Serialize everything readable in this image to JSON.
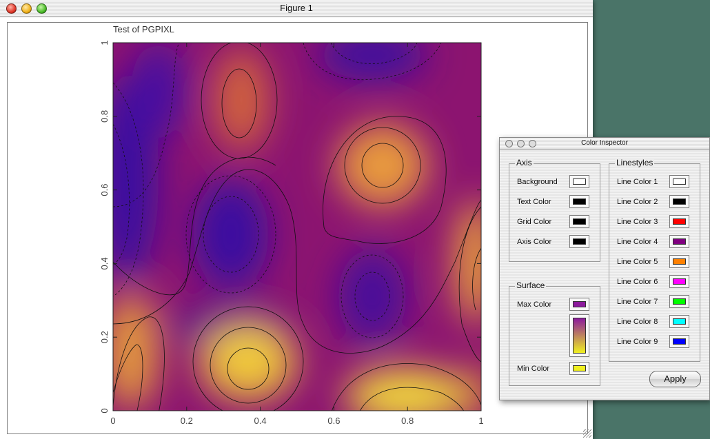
{
  "figure_window": {
    "title": "Figure 1"
  },
  "chart_data": {
    "type": "heatmap",
    "title": "Test of PGPIXL",
    "xlabel": "",
    "ylabel": "",
    "xlim": [
      0,
      1
    ],
    "ylim": [
      0,
      1
    ],
    "xticks": [
      "0",
      "0.2",
      "0.4",
      "0.6",
      "0.8",
      "1"
    ],
    "yticks": [
      "0",
      "0.2",
      "0.4",
      "0.6",
      "0.8",
      "1"
    ],
    "colormap": {
      "min_color": "#f0f020",
      "max_color": "#8c1a9c",
      "low_color": "#3a0aa0"
    },
    "contours": "black, dashed for negative levels",
    "grid": false
  },
  "color_inspector": {
    "title": "Color Inspector",
    "axis": {
      "title": "Axis",
      "items": [
        {
          "label": "Background",
          "color": "#ffffff"
        },
        {
          "label": "Text Color",
          "color": "#000000"
        },
        {
          "label": "Grid Color",
          "color": "#000000"
        },
        {
          "label": "Axis Color",
          "color": "#000000"
        }
      ]
    },
    "surface": {
      "title": "Surface",
      "max": {
        "label": "Max Color",
        "color": "#8c1a9c"
      },
      "min": {
        "label": "Min Color",
        "color": "#f0f020"
      }
    },
    "linestyles": {
      "title": "Linestyles",
      "items": [
        {
          "label": "Line Color 1",
          "color": "#ffffff"
        },
        {
          "label": "Line Color 2",
          "color": "#000000"
        },
        {
          "label": "Line Color 3",
          "color": "#ff0000"
        },
        {
          "label": "Line Color 4",
          "color": "#800080"
        },
        {
          "label": "Line Color 5",
          "color": "#ff8000"
        },
        {
          "label": "Line Color 6",
          "color": "#ff00ff"
        },
        {
          "label": "Line Color 7",
          "color": "#00ff00"
        },
        {
          "label": "Line Color 8",
          "color": "#00ffff"
        },
        {
          "label": "Line Color 9",
          "color": "#0000ff"
        }
      ]
    },
    "apply_label": "Apply"
  }
}
